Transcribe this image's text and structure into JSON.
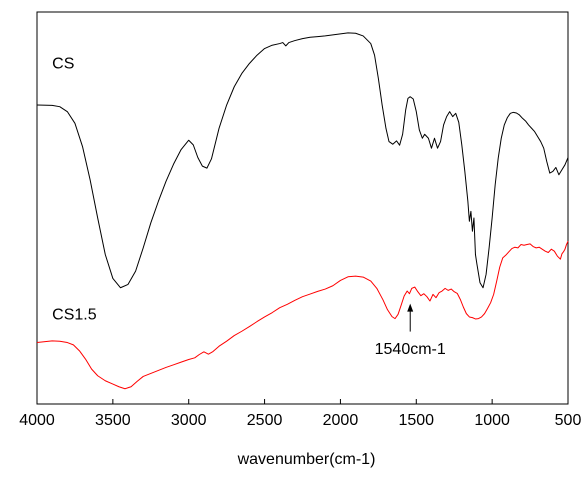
{
  "chart_data": {
    "type": "line",
    "title": "",
    "xlabel": "wavenumber(cm-1)",
    "ylabel": "",
    "xlim": [
      4000,
      500
    ],
    "x_reversed": true,
    "y_ticks_shown": false,
    "grid": false,
    "x_ticks": [
      4000,
      3500,
      3000,
      2500,
      2000,
      1500,
      1000,
      500
    ],
    "series": [
      {
        "name": "CS",
        "color": "#000000",
        "points": [
          [
            4000,
            0.9
          ],
          [
            3900,
            0.899
          ],
          [
            3850,
            0.895
          ],
          [
            3800,
            0.88
          ],
          [
            3750,
            0.845
          ],
          [
            3700,
            0.775
          ],
          [
            3650,
            0.675
          ],
          [
            3600,
            0.56
          ],
          [
            3550,
            0.45
          ],
          [
            3500,
            0.378
          ],
          [
            3450,
            0.35
          ],
          [
            3400,
            0.36
          ],
          [
            3350,
            0.4
          ],
          [
            3300,
            0.47
          ],
          [
            3250,
            0.545
          ],
          [
            3200,
            0.61
          ],
          [
            3150,
            0.67
          ],
          [
            3100,
            0.722
          ],
          [
            3050,
            0.766
          ],
          [
            3000,
            0.794
          ],
          [
            2970,
            0.78
          ],
          [
            2940,
            0.742
          ],
          [
            2910,
            0.716
          ],
          [
            2880,
            0.71
          ],
          [
            2850,
            0.738
          ],
          [
            2800,
            0.83
          ],
          [
            2750,
            0.9
          ],
          [
            2700,
            0.955
          ],
          [
            2650,
            0.995
          ],
          [
            2600,
            1.025
          ],
          [
            2550,
            1.05
          ],
          [
            2500,
            1.07
          ],
          [
            2450,
            1.08
          ],
          [
            2400,
            1.085
          ],
          [
            2380,
            1.088
          ],
          [
            2360,
            1.078
          ],
          [
            2340,
            1.088
          ],
          [
            2300,
            1.094
          ],
          [
            2250,
            1.1
          ],
          [
            2200,
            1.104
          ],
          [
            2150,
            1.106
          ],
          [
            2100,
            1.108
          ],
          [
            2050,
            1.111
          ],
          [
            2000,
            1.114
          ],
          [
            1950,
            1.117
          ],
          [
            1900,
            1.116
          ],
          [
            1850,
            1.108
          ],
          [
            1800,
            1.085
          ],
          [
            1775,
            1.05
          ],
          [
            1750,
            0.98
          ],
          [
            1725,
            0.9
          ],
          [
            1700,
            0.83
          ],
          [
            1680,
            0.79
          ],
          [
            1655,
            0.782
          ],
          [
            1630,
            0.792
          ],
          [
            1610,
            0.779
          ],
          [
            1590,
            0.812
          ],
          [
            1570,
            0.885
          ],
          [
            1555,
            0.92
          ],
          [
            1540,
            0.925
          ],
          [
            1520,
            0.918
          ],
          [
            1500,
            0.88
          ],
          [
            1480,
            0.825
          ],
          [
            1460,
            0.8
          ],
          [
            1445,
            0.812
          ],
          [
            1420,
            0.8
          ],
          [
            1400,
            0.77
          ],
          [
            1380,
            0.8
          ],
          [
            1360,
            0.77
          ],
          [
            1340,
            0.79
          ],
          [
            1320,
            0.84
          ],
          [
            1300,
            0.865
          ],
          [
            1280,
            0.88
          ],
          [
            1260,
            0.865
          ],
          [
            1240,
            0.875
          ],
          [
            1220,
            0.848
          ],
          [
            1200,
            0.78
          ],
          [
            1180,
            0.7
          ],
          [
            1160,
            0.61
          ],
          [
            1150,
            0.55
          ],
          [
            1140,
            0.58
          ],
          [
            1130,
            0.52
          ],
          [
            1120,
            0.56
          ],
          [
            1110,
            0.45
          ],
          [
            1100,
            0.42
          ],
          [
            1080,
            0.365
          ],
          [
            1060,
            0.35
          ],
          [
            1040,
            0.39
          ],
          [
            1020,
            0.47
          ],
          [
            1000,
            0.56
          ],
          [
            980,
            0.66
          ],
          [
            960,
            0.74
          ],
          [
            940,
            0.8
          ],
          [
            920,
            0.84
          ],
          [
            900,
            0.862
          ],
          [
            880,
            0.875
          ],
          [
            860,
            0.878
          ],
          [
            840,
            0.876
          ],
          [
            820,
            0.87
          ],
          [
            800,
            0.86
          ],
          [
            780,
            0.852
          ],
          [
            760,
            0.84
          ],
          [
            740,
            0.83
          ],
          [
            720,
            0.82
          ],
          [
            700,
            0.805
          ],
          [
            680,
            0.79
          ],
          [
            660,
            0.77
          ],
          [
            640,
            0.73
          ],
          [
            620,
            0.695
          ],
          [
            600,
            0.7
          ],
          [
            580,
            0.712
          ],
          [
            560,
            0.69
          ],
          [
            540,
            0.705
          ],
          [
            520,
            0.72
          ],
          [
            500,
            0.742
          ]
        ]
      },
      {
        "name": "CS1.5",
        "color": "#ff0000",
        "points": [
          [
            4000,
            0.185
          ],
          [
            3900,
            0.19
          ],
          [
            3850,
            0.189
          ],
          [
            3800,
            0.185
          ],
          [
            3760,
            0.178
          ],
          [
            3720,
            0.16
          ],
          [
            3680,
            0.135
          ],
          [
            3640,
            0.105
          ],
          [
            3600,
            0.085
          ],
          [
            3550,
            0.07
          ],
          [
            3500,
            0.06
          ],
          [
            3460,
            0.052
          ],
          [
            3420,
            0.046
          ],
          [
            3380,
            0.052
          ],
          [
            3340,
            0.068
          ],
          [
            3300,
            0.083
          ],
          [
            3250,
            0.092
          ],
          [
            3200,
            0.101
          ],
          [
            3150,
            0.11
          ],
          [
            3100,
            0.118
          ],
          [
            3050,
            0.126
          ],
          [
            3000,
            0.134
          ],
          [
            2960,
            0.139
          ],
          [
            2930,
            0.149
          ],
          [
            2900,
            0.157
          ],
          [
            2870,
            0.15
          ],
          [
            2840,
            0.158
          ],
          [
            2800,
            0.174
          ],
          [
            2750,
            0.189
          ],
          [
            2700,
            0.206
          ],
          [
            2650,
            0.219
          ],
          [
            2600,
            0.233
          ],
          [
            2550,
            0.248
          ],
          [
            2500,
            0.262
          ],
          [
            2450,
            0.275
          ],
          [
            2400,
            0.29
          ],
          [
            2350,
            0.3
          ],
          [
            2300,
            0.312
          ],
          [
            2250,
            0.323
          ],
          [
            2200,
            0.331
          ],
          [
            2150,
            0.339
          ],
          [
            2100,
            0.346
          ],
          [
            2050,
            0.356
          ],
          [
            2000,
            0.372
          ],
          [
            1950,
            0.383
          ],
          [
            1900,
            0.385
          ],
          [
            1850,
            0.382
          ],
          [
            1800,
            0.37
          ],
          [
            1760,
            0.348
          ],
          [
            1720,
            0.314
          ],
          [
            1690,
            0.284
          ],
          [
            1660,
            0.263
          ],
          [
            1640,
            0.257
          ],
          [
            1620,
            0.27
          ],
          [
            1600,
            0.297
          ],
          [
            1580,
            0.325
          ],
          [
            1560,
            0.34
          ],
          [
            1545,
            0.332
          ],
          [
            1530,
            0.348
          ],
          [
            1510,
            0.352
          ],
          [
            1490,
            0.338
          ],
          [
            1470,
            0.326
          ],
          [
            1450,
            0.332
          ],
          [
            1430,
            0.323
          ],
          [
            1410,
            0.31
          ],
          [
            1390,
            0.33
          ],
          [
            1370,
            0.32
          ],
          [
            1350,
            0.335
          ],
          [
            1330,
            0.34
          ],
          [
            1310,
            0.348
          ],
          [
            1290,
            0.342
          ],
          [
            1270,
            0.346
          ],
          [
            1250,
            0.338
          ],
          [
            1230,
            0.333
          ],
          [
            1210,
            0.315
          ],
          [
            1190,
            0.292
          ],
          [
            1170,
            0.272
          ],
          [
            1150,
            0.262
          ],
          [
            1130,
            0.26
          ],
          [
            1110,
            0.256
          ],
          [
            1090,
            0.257
          ],
          [
            1070,
            0.262
          ],
          [
            1050,
            0.272
          ],
          [
            1030,
            0.288
          ],
          [
            1010,
            0.305
          ],
          [
            990,
            0.33
          ],
          [
            970,
            0.37
          ],
          [
            950,
            0.412
          ],
          [
            930,
            0.44
          ],
          [
            910,
            0.448
          ],
          [
            890,
            0.458
          ],
          [
            870,
            0.468
          ],
          [
            850,
            0.472
          ],
          [
            830,
            0.47
          ],
          [
            810,
            0.48
          ],
          [
            790,
            0.478
          ],
          [
            770,
            0.48
          ],
          [
            750,
            0.482
          ],
          [
            730,
            0.474
          ],
          [
            710,
            0.47
          ],
          [
            690,
            0.472
          ],
          [
            670,
            0.466
          ],
          [
            650,
            0.46
          ],
          [
            630,
            0.456
          ],
          [
            610,
            0.466
          ],
          [
            590,
            0.46
          ],
          [
            570,
            0.445
          ],
          [
            550,
            0.436
          ],
          [
            540,
            0.452
          ],
          [
            530,
            0.458
          ],
          [
            520,
            0.466
          ],
          [
            510,
            0.48
          ],
          [
            500,
            0.49
          ]
        ]
      }
    ],
    "series_labels": [
      {
        "text": "CS",
        "x": 3900,
        "y": 1.01
      },
      {
        "text": "CS1.5",
        "x": 3900,
        "y": 0.255
      }
    ],
    "annotations": [
      {
        "text": "1540cm-1",
        "x": 1540,
        "arrow_tip_y": 0.302,
        "arrow_tail_y": 0.218,
        "text_y": 0.15
      }
    ]
  }
}
